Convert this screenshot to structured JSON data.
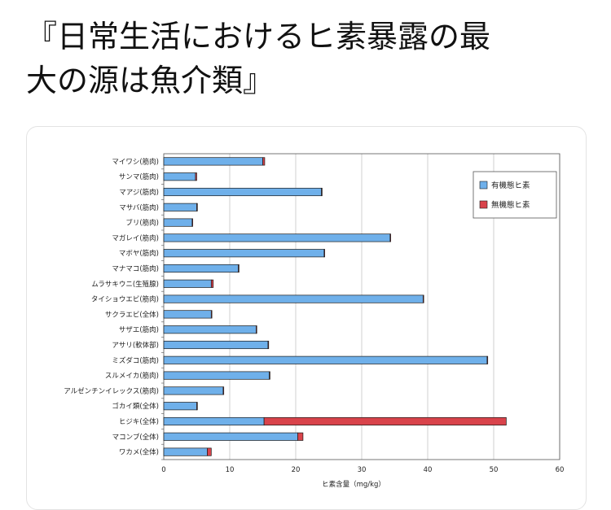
{
  "post": {
    "title_line1": "『日常生活におけるヒ素暴露の最",
    "title_line2": "大の源は魚介類』"
  },
  "chart_data": {
    "type": "bar",
    "orientation": "horizontal",
    "stacked": true,
    "categories": [
      "マイワシ(筋肉)",
      "サンマ(筋肉)",
      "マアジ(筋肉)",
      "マサバ(筋肉)",
      "ブリ(筋肉)",
      "マガレイ(筋肉)",
      "マボヤ(筋肉)",
      "マナマコ(筋肉)",
      "ムラサキウニ(生殖腺)",
      "タイショウエビ(筋肉)",
      "サクラエビ(全体)",
      "サザエ(筋肉)",
      "アサリ(軟体部)",
      "ミズダコ(筋肉)",
      "スルメイカ(筋肉)",
      "アルゼンチンイレックス(筋肉)",
      "ゴカイ類(全体)",
      "ヒジキ(全体)",
      "マコンブ(全体)",
      "ワカメ(全体)"
    ],
    "series": [
      {
        "name": "有機態ヒ素",
        "color": "#6fb0ea",
        "values": [
          15.0,
          4.8,
          23.9,
          5.0,
          4.3,
          34.3,
          24.3,
          11.3,
          7.2,
          39.3,
          7.2,
          14.0,
          15.8,
          49.0,
          16.0,
          9.0,
          5.0,
          15.2,
          20.3,
          6.6
        ]
      },
      {
        "name": "無機態ヒ素",
        "color": "#d9434b",
        "values": [
          0.3,
          0.2,
          0.1,
          0.1,
          0.1,
          0.1,
          0.1,
          0.1,
          0.3,
          0.1,
          0.1,
          0.1,
          0.1,
          0.1,
          0.1,
          0.1,
          0.1,
          36.7,
          0.8,
          0.6
        ]
      }
    ],
    "xlabel": "ヒ素含量（mg/kg）",
    "xlim": [
      0,
      60
    ],
    "xticks": [
      "0",
      "10",
      "20",
      "30",
      "40",
      "50",
      "60"
    ],
    "grid": true,
    "legend_position": "top-right"
  }
}
